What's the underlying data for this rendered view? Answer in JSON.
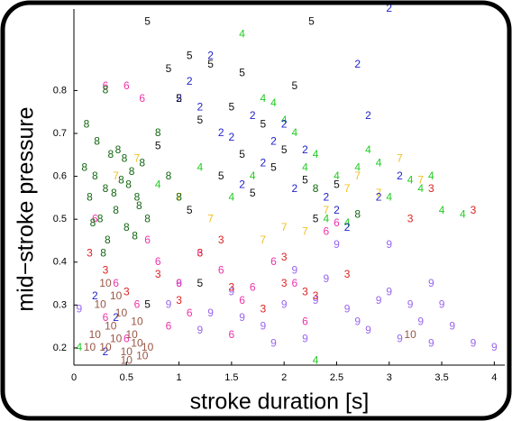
{
  "chart_data": {
    "type": "scatter",
    "xlabel": "stroke duration [s]",
    "ylabel": "mid−stroke pressure",
    "xlim": [
      0,
      4.1
    ],
    "ylim": [
      0.16,
      0.99
    ],
    "xticks": [
      0,
      0.5,
      1,
      1.5,
      2,
      2.5,
      3,
      3.5,
      4
    ],
    "yticks": [
      0.2,
      0.3,
      0.4,
      0.5,
      0.6,
      0.7,
      0.8
    ],
    "series": [
      {
        "name": "9",
        "color": "#9966ee",
        "x": [
          1.0,
          1.3,
          1.5,
          1.8,
          2.0,
          2.2,
          2.4,
          2.6,
          2.8,
          3.0,
          3.2,
          3.4,
          3.5,
          3.6,
          3.8,
          4.0,
          2.5,
          2.9,
          3.3,
          1.6,
          1.9,
          2.1,
          2.7,
          3.1,
          3.4,
          0.05,
          1.2,
          2.3,
          3.0,
          0.9
        ],
        "y": [
          0.35,
          0.28,
          0.33,
          0.25,
          0.3,
          0.22,
          0.36,
          0.29,
          0.24,
          0.33,
          0.3,
          0.21,
          0.3,
          0.25,
          0.21,
          0.2,
          0.44,
          0.31,
          0.26,
          0.27,
          0.21,
          0.38,
          0.26,
          0.22,
          0.35,
          0.29,
          0.24,
          0.31,
          0.44,
          0.3
        ]
      },
      {
        "name": "6",
        "color": "#ee33aa",
        "x": [
          0.3,
          0.5,
          0.65,
          0.7,
          0.2,
          0.4,
          0.6,
          0.8,
          1.0,
          1.2,
          1.4,
          1.6,
          1.9,
          2.2,
          2.4,
          0.9,
          1.1,
          1.5,
          1.7,
          2.1,
          0.5,
          0.3,
          2.5
        ],
        "y": [
          0.81,
          0.81,
          0.78,
          0.45,
          0.5,
          0.35,
          0.3,
          0.4,
          0.35,
          0.42,
          0.38,
          0.31,
          0.4,
          0.26,
          0.47,
          0.25,
          0.28,
          0.23,
          0.34,
          0.35,
          0.22,
          0.27,
          0.49
        ]
      },
      {
        "name": "3",
        "color": "#dd2222",
        "x": [
          3.4,
          3.8,
          3.2,
          2.3,
          2.0,
          2.6,
          0.15,
          0.3,
          0.5,
          0.8,
          1.0,
          1.2,
          1.5,
          1.8,
          2.2,
          2.0,
          1.4
        ],
        "y": [
          0.57,
          0.52,
          0.5,
          0.32,
          0.35,
          0.37,
          0.42,
          0.38,
          0.33,
          0.37,
          0.31,
          0.42,
          0.34,
          0.29,
          0.33,
          0.41,
          0.45
        ]
      },
      {
        "name": "7",
        "color": "#f0c020",
        "x": [
          3.1,
          3.3,
          2.7,
          2.0,
          1.8,
          2.4,
          2.9,
          0.4,
          0.6,
          1.0,
          1.3,
          2.2,
          2.6
        ],
        "y": [
          0.64,
          0.59,
          0.6,
          0.48,
          0.45,
          0.52,
          0.56,
          0.6,
          0.64,
          0.55,
          0.5,
          0.47,
          0.57
        ]
      },
      {
        "name": "4",
        "color": "#22cc22",
        "x": [
          1.6,
          1.9,
          2.0,
          1.8,
          2.3,
          2.5,
          2.7,
          2.9,
          3.0,
          3.2,
          3.4,
          3.5,
          3.7,
          2.2,
          2.4,
          2.6,
          2.8,
          1.5,
          1.7,
          2.1,
          0.8,
          2.3,
          0.05,
          1.2,
          3.3
        ],
        "y": [
          0.93,
          0.77,
          0.73,
          0.78,
          0.65,
          0.6,
          0.62,
          0.63,
          0.55,
          0.59,
          0.6,
          0.52,
          0.51,
          0.62,
          0.5,
          0.49,
          0.66,
          0.55,
          0.6,
          0.7,
          0.58,
          0.17,
          0.2,
          0.62,
          0.57
        ]
      },
      {
        "name": "2",
        "color": "#2222cc",
        "x": [
          1.1,
          1.3,
          1.2,
          1.4,
          1.5,
          1.0,
          1.7,
          2.0,
          2.2,
          2.8,
          2.7,
          3.0,
          1.8,
          2.4,
          2.9,
          2.6,
          0.2,
          0.3,
          0.4,
          2.1,
          1.6,
          1.9,
          2.5,
          3.1
        ],
        "y": [
          0.82,
          0.88,
          0.76,
          0.7,
          0.69,
          0.78,
          0.74,
          0.72,
          0.66,
          0.74,
          0.86,
          0.99,
          0.63,
          0.55,
          0.55,
          0.48,
          0.32,
          0.19,
          0.27,
          0.57,
          0.58,
          0.68,
          0.52,
          0.6
        ]
      },
      {
        "name": "5",
        "color": "#111111",
        "x": [
          0.7,
          0.9,
          1.0,
          1.1,
          1.2,
          1.3,
          1.5,
          1.6,
          1.8,
          2.0,
          2.1,
          2.2,
          2.3,
          0.8,
          1.4,
          1.7,
          1.9,
          2.5,
          0.7,
          1.2,
          2.26,
          1.1,
          1.6
        ],
        "y": [
          0.96,
          0.85,
          0.78,
          0.88,
          0.73,
          0.86,
          0.76,
          0.84,
          0.72,
          0.66,
          0.81,
          0.59,
          0.5,
          0.67,
          0.6,
          0.56,
          0.62,
          0.58,
          0.3,
          0.35,
          0.96,
          0.52,
          0.65
        ]
      },
      {
        "name": "8",
        "color": "#116611",
        "x": [
          0.1,
          0.15,
          0.2,
          0.25,
          0.3,
          0.35,
          0.4,
          0.45,
          0.5,
          0.55,
          0.6,
          0.65,
          0.7,
          0.8,
          0.12,
          0.22,
          0.32,
          0.42,
          0.52,
          0.62,
          0.18,
          0.28,
          0.38,
          0.48,
          0.58,
          0.9,
          1.0,
          0.3,
          2.7,
          2.3
        ],
        "y": [
          0.62,
          0.55,
          0.6,
          0.5,
          0.57,
          0.65,
          0.52,
          0.59,
          0.48,
          0.61,
          0.55,
          0.63,
          0.5,
          0.7,
          0.72,
          0.68,
          0.45,
          0.66,
          0.58,
          0.53,
          0.49,
          0.42,
          0.56,
          0.64,
          0.46,
          0.6,
          0.55,
          0.8,
          0.51,
          0.57
        ]
      },
      {
        "name": "10",
        "color": "#995544",
        "x": [
          0.3,
          0.4,
          0.5,
          0.6,
          0.35,
          0.45,
          0.55,
          0.65,
          0.25,
          0.3,
          0.5,
          0.7,
          0.2,
          0.15,
          3.2,
          0.4,
          0.6
        ],
        "y": [
          0.2,
          0.22,
          0.19,
          0.21,
          0.25,
          0.28,
          0.23,
          0.18,
          0.3,
          0.35,
          0.17,
          0.2,
          0.23,
          0.2,
          0.23,
          0.32,
          0.26
        ]
      }
    ]
  }
}
